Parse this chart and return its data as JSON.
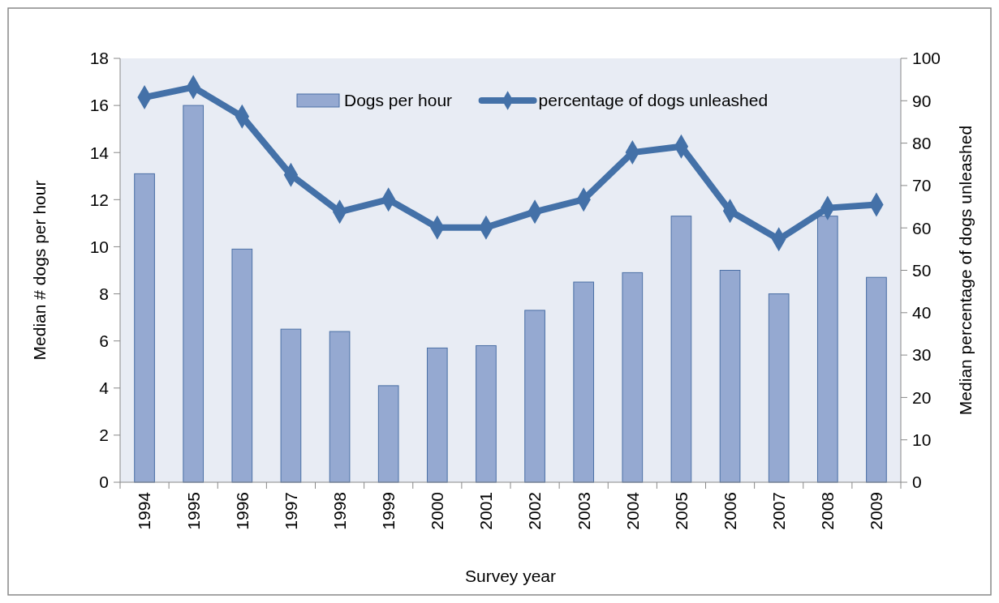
{
  "chart_data": {
    "type": "bar",
    "xlabel": "Survey year",
    "ylabel": "Median # dogs per hour",
    "y2label": "Median percentage of dogs unleashed",
    "categories": [
      "1994",
      "1995",
      "1996",
      "1997",
      "1998",
      "1999",
      "2000",
      "2001",
      "2002",
      "2003",
      "2004",
      "2005",
      "2006",
      "2007",
      "2008",
      "2009"
    ],
    "series": [
      {
        "name": "Dogs per hour",
        "color": "#95a9d1",
        "values": [
          13.1,
          16.0,
          9.9,
          6.5,
          6.4,
          4.1,
          5.7,
          5.8,
          7.3,
          8.5,
          8.9,
          11.3,
          9.0,
          8.0,
          11.3,
          8.7
        ]
      },
      {
        "name": "percentage of dogs unleashed",
        "type": "line",
        "axis": "y2",
        "color": "#4471a8",
        "marker": "diamond",
        "values": [
          90.8,
          93.2,
          86.3,
          72.5,
          63.8,
          66.7,
          60.1,
          60.1,
          63.8,
          66.7,
          77.8,
          79.2,
          64.0,
          57.3,
          64.7,
          65.5
        ]
      }
    ],
    "ylim": [
      0,
      18
    ],
    "yticks": [
      0,
      2,
      4,
      6,
      8,
      10,
      12,
      14,
      16,
      18
    ],
    "y2lim": [
      0,
      100
    ],
    "y2ticks": [
      0,
      10,
      20,
      30,
      40,
      50,
      60,
      70,
      80,
      90,
      100
    ],
    "legend": "top",
    "grid": false
  }
}
